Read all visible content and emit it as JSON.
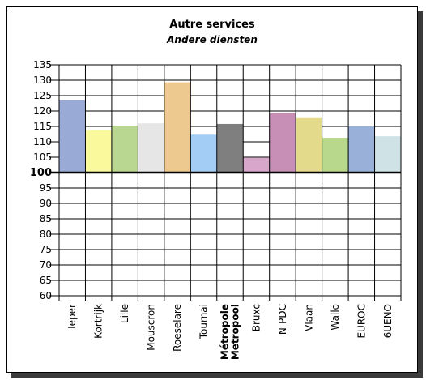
{
  "chart_data": {
    "type": "bar",
    "title": "Autre services",
    "subtitle": "Andere diensten",
    "xlabel": "",
    "ylabel": "",
    "ylim": [
      60,
      135
    ],
    "yticks": [
      135,
      130,
      125,
      120,
      115,
      110,
      105,
      100,
      95,
      90,
      85,
      80,
      75,
      70,
      65,
      60
    ],
    "baseline": 100,
    "grid": true,
    "legend": "none",
    "categories": [
      {
        "label": "Ieper",
        "bold": false
      },
      {
        "label": "Kortrijk",
        "bold": false
      },
      {
        "label": "Lille",
        "bold": false
      },
      {
        "label": "Mouscron",
        "bold": false
      },
      {
        "label": "Roeselare",
        "bold": false
      },
      {
        "label": "Tournai",
        "bold": false
      },
      {
        "label": "Métropole\nMetropool",
        "bold": true
      },
      {
        "label": "Bruxc",
        "bold": false
      },
      {
        "label": "N-PDC",
        "bold": false
      },
      {
        "label": "Vlaan",
        "bold": false
      },
      {
        "label": "Wallo",
        "bold": false
      },
      {
        "label": "EUROC",
        "bold": false
      },
      {
        "label": "6UENO",
        "bold": false
      }
    ],
    "values": [
      123.5,
      113.8,
      115.2,
      116.0,
      129.3,
      112.3,
      115.8,
      104.8,
      119.3,
      117.7,
      111.3,
      115.0,
      111.8
    ],
    "colors": [
      "#9aaad6",
      "#fafa9c",
      "#b9d791",
      "#e6e6e6",
      "#eec98f",
      "#a3cdf5",
      "#7f7f7f",
      "#d9a6cb",
      "#c78fb5",
      "#e4da8c",
      "#b8d88c",
      "#99b0d8",
      "#cfe3e7"
    ]
  }
}
